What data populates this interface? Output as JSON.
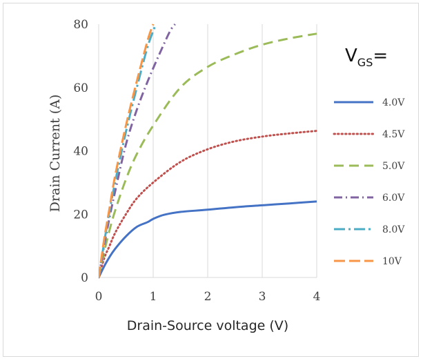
{
  "chart_data": {
    "type": "line",
    "xlabel": "Drain-Source voltage (V)",
    "ylabel": "Drain Current (A)",
    "xlim": [
      0,
      4
    ],
    "ylim": [
      0,
      80
    ],
    "xticks": [
      "0",
      "1",
      "2",
      "3",
      "4"
    ],
    "yticks": [
      "0",
      "20",
      "40",
      "60",
      "80"
    ],
    "grid": "vertical",
    "legend_position": "right",
    "legend_title": {
      "main": "V",
      "sub": "GS",
      "suffix": "="
    },
    "series": [
      {
        "name": "4.0V",
        "color": "#4472c4",
        "dash": "solid",
        "x": [
          0,
          0.1,
          0.2,
          0.3,
          0.5,
          0.7,
          0.9,
          1.0,
          1.2,
          1.5,
          2.0,
          2.5,
          3.0,
          3.5,
          4.0
        ],
        "y": [
          0,
          3.5,
          6.5,
          9,
          13,
          16,
          17.5,
          18.5,
          19.8,
          20.7,
          21.4,
          22.2,
          22.8,
          23.4,
          24.0
        ]
      },
      {
        "name": "4.5V",
        "color": "#c0504d",
        "dash": "dotted",
        "x": [
          0,
          0.1,
          0.2,
          0.3,
          0.5,
          0.7,
          1.0,
          1.5,
          2.0,
          2.5,
          3.0,
          3.5,
          4.0
        ],
        "y": [
          0,
          6,
          10,
          14,
          20,
          25,
          30,
          36.5,
          40.5,
          43,
          44.5,
          45.5,
          46.3
        ]
      },
      {
        "name": "5.0V",
        "color": "#9bbb59",
        "dash": "dashed",
        "x": [
          0,
          0.1,
          0.2,
          0.3,
          0.5,
          0.7,
          1.0,
          1.5,
          2.0,
          2.5,
          3.0,
          3.5,
          4.0
        ],
        "y": [
          0,
          8,
          15,
          21,
          31,
          39,
          48,
          60,
          66.5,
          70.5,
          73.5,
          75.5,
          77
        ]
      },
      {
        "name": "6.0V",
        "color": "#8064a2",
        "dash": "dashdot",
        "x": [
          0,
          0.1,
          0.2,
          0.3,
          0.5,
          0.7,
          0.9,
          1.1,
          1.3,
          1.4
        ],
        "y": [
          0,
          10,
          19,
          27,
          42,
          53,
          62,
          70,
          77.5,
          80
        ]
      },
      {
        "name": "8.0V",
        "color": "#4bacc6",
        "dash": "longdashdot",
        "x": [
          0,
          0.1,
          0.2,
          0.3,
          0.5,
          0.7,
          0.9,
          1.05
        ],
        "y": [
          0,
          11,
          21,
          30,
          46,
          60,
          73,
          80
        ]
      },
      {
        "name": "10V",
        "color": "#f79646",
        "dash": "longdash",
        "x": [
          0,
          0.1,
          0.2,
          0.3,
          0.5,
          0.7,
          0.9,
          1.0
        ],
        "y": [
          0,
          12,
          22,
          32,
          48,
          62,
          75,
          80
        ]
      }
    ]
  }
}
